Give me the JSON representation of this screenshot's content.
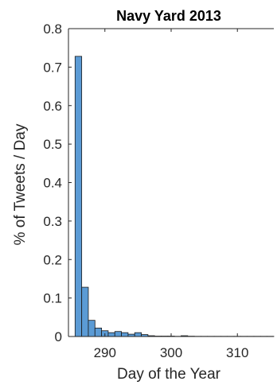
{
  "chart_data": {
    "type": "bar",
    "title": "Navy Yard 2013",
    "xlabel": "Day of the Year",
    "ylabel": "% of Tweets / Day",
    "xlim": [
      284.5,
      315.5
    ],
    "ylim": [
      0,
      0.8
    ],
    "xticks": [
      290,
      300,
      310
    ],
    "yticks": [
      0,
      0.1,
      0.2,
      0.3,
      0.4,
      0.5,
      0.6,
      0.7,
      0.8
    ],
    "grid": false,
    "bar_color": "#5B9BD5",
    "bin_width": 1,
    "x": [
      286,
      287,
      288,
      289,
      290,
      291,
      292,
      293,
      294,
      295,
      296,
      297,
      298,
      299,
      300,
      301,
      302,
      303,
      304,
      305,
      306,
      307,
      308,
      309,
      310,
      311,
      312,
      313,
      314,
      315
    ],
    "values": [
      0.728,
      0.128,
      0.042,
      0.022,
      0.015,
      0.01,
      0.013,
      0.01,
      0.006,
      0.01,
      0.005,
      0.002,
      0.001,
      0.001,
      0.001,
      0.0005,
      0.002,
      0.0008,
      0.0005,
      0.0005,
      0.0005,
      0.0005,
      0.0005,
      0.0005,
      0.0005,
      0.0005,
      0.0005,
      0.0005,
      0.0005,
      0.0005
    ]
  }
}
